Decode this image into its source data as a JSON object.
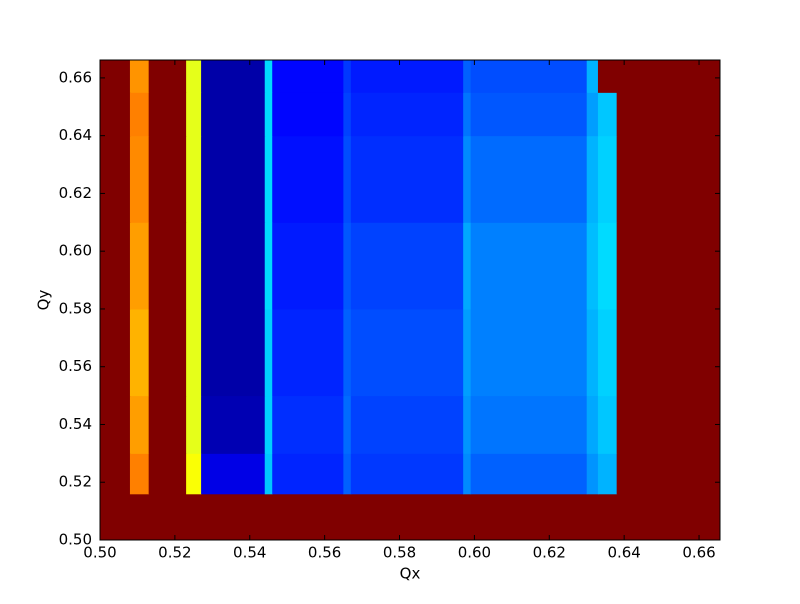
{
  "chart_data": {
    "type": "heatmap",
    "xlabel": "Qx",
    "ylabel": "Qy",
    "colormap": "jet",
    "clim": [
      0,
      1
    ],
    "x_edges": [
      0.5,
      0.508,
      0.513,
      0.523,
      0.527,
      0.544,
      0.546,
      0.565,
      0.567,
      0.597,
      0.599,
      0.63,
      0.633,
      0.638,
      0.6656
    ],
    "y_edges": [
      0.5,
      0.516,
      0.53,
      0.55,
      0.58,
      0.61,
      0.64,
      0.655,
      0.6662
    ],
    "z": [
      [
        1,
        1,
        1,
        1,
        1,
        1,
        1,
        1,
        1,
        1,
        1,
        1,
        1,
        1
      ],
      [
        1,
        0.75,
        1,
        0.62,
        0.1,
        0.32,
        0.16,
        0.22,
        0.18,
        0.26,
        0.22,
        0.27,
        0.3,
        1
      ],
      [
        1,
        0.72,
        1,
        0.6,
        0.05,
        0.33,
        0.17,
        0.23,
        0.19,
        0.27,
        0.24,
        0.29,
        0.32,
        1
      ],
      [
        1,
        0.7,
        1,
        0.6,
        0.04,
        0.33,
        0.16,
        0.22,
        0.2,
        0.28,
        0.25,
        0.3,
        0.33,
        1
      ],
      [
        1,
        0.72,
        1,
        0.6,
        0.04,
        0.34,
        0.15,
        0.21,
        0.19,
        0.29,
        0.25,
        0.31,
        0.34,
        1
      ],
      [
        1,
        0.74,
        1,
        0.6,
        0.04,
        0.34,
        0.14,
        0.2,
        0.17,
        0.26,
        0.23,
        0.3,
        0.33,
        1
      ],
      [
        1,
        0.75,
        1,
        0.6,
        0.04,
        0.34,
        0.13,
        0.19,
        0.16,
        0.24,
        0.21,
        0.28,
        0.32,
        1
      ],
      [
        1,
        0.73,
        1,
        0.6,
        0.04,
        0.34,
        0.13,
        0.18,
        0.15,
        0.22,
        0.2,
        0.3,
        1,
        1
      ]
    ],
    "xlim": [
      0.5,
      0.6656
    ],
    "ylim": [
      0.5,
      0.6662
    ],
    "xticks": [
      {
        "value": 0.5,
        "label": "0.50"
      },
      {
        "value": 0.52,
        "label": "0.52"
      },
      {
        "value": 0.54,
        "label": "0.54"
      },
      {
        "value": 0.56,
        "label": "0.56"
      },
      {
        "value": 0.58,
        "label": "0.58"
      },
      {
        "value": 0.6,
        "label": "0.60"
      },
      {
        "value": 0.62,
        "label": "0.62"
      },
      {
        "value": 0.64,
        "label": "0.64"
      },
      {
        "value": 0.66,
        "label": "0.66"
      }
    ],
    "yticks": [
      {
        "value": 0.5,
        "label": "0.50"
      },
      {
        "value": 0.52,
        "label": "0.52"
      },
      {
        "value": 0.54,
        "label": "0.54"
      },
      {
        "value": 0.56,
        "label": "0.56"
      },
      {
        "value": 0.58,
        "label": "0.58"
      },
      {
        "value": 0.6,
        "label": "0.60"
      },
      {
        "value": 0.62,
        "label": "0.62"
      },
      {
        "value": 0.64,
        "label": "0.64"
      },
      {
        "value": 0.66,
        "label": "0.66"
      }
    ]
  }
}
